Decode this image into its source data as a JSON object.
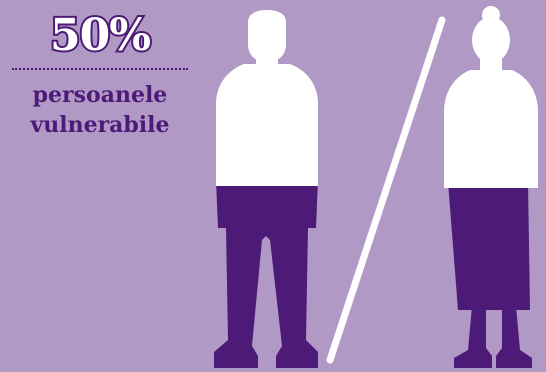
{
  "infographic": {
    "stat_value": "50%",
    "stat_label_line1": "persoanele",
    "stat_label_line2": "vulnerabile",
    "figures": [
      {
        "name": "man",
        "fill_upper": "#ffffff",
        "fill_lower": "#4e1a78"
      },
      {
        "name": "woman",
        "fill_upper": "#ffffff",
        "fill_lower": "#4e1a78"
      }
    ],
    "colors": {
      "background": "#b199c6",
      "accent": "#4e1a78",
      "highlight": "#ffffff"
    }
  }
}
